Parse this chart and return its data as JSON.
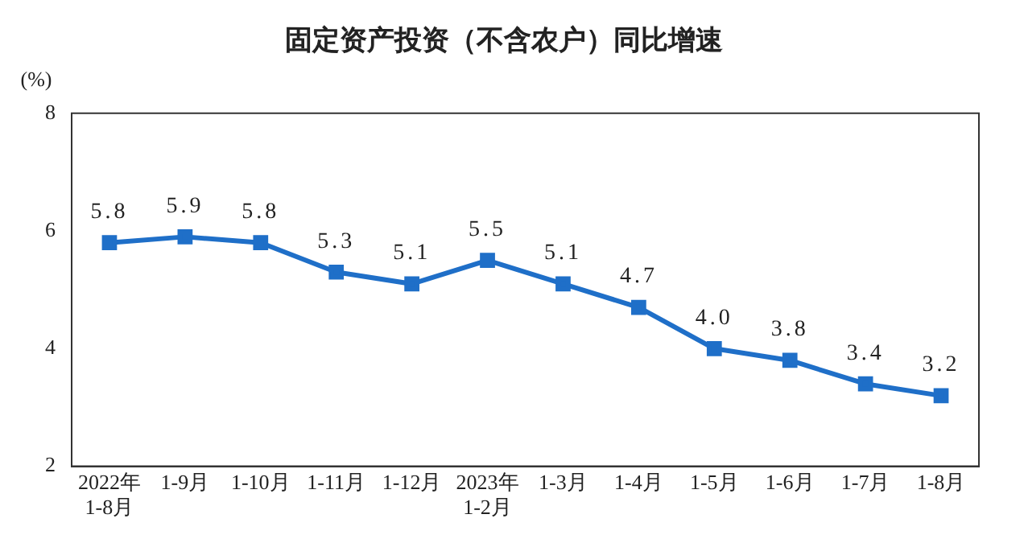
{
  "chart_data": {
    "type": "line",
    "title": "固定资产投资（不含农户）同比增速",
    "ylabel": "(%)",
    "categories": [
      "2022年\n1-8月",
      "1-9月",
      "1-10月",
      "1-11月",
      "1-12月",
      "2023年\n1-2月",
      "1-3月",
      "1-4月",
      "1-5月",
      "1-6月",
      "1-7月",
      "1-8月"
    ],
    "series": [
      {
        "color": "#1f6fc8",
        "values": [
          5.8,
          5.9,
          5.8,
          5.3,
          5.1,
          5.5,
          5.1,
          4.7,
          4.0,
          3.8,
          3.4,
          3.2
        ],
        "value_labels": [
          "5.8",
          "5.9",
          "5.8",
          "5.3",
          "5.1",
          "5.5",
          "5.1",
          "4.7",
          "4.0",
          "3.8",
          "3.4",
          "3.2"
        ]
      }
    ],
    "ylim": [
      2,
      8
    ],
    "yticks": [
      2,
      4,
      6,
      8
    ],
    "grid": false,
    "legend": false,
    "marker": "square",
    "line_style": "solid"
  }
}
